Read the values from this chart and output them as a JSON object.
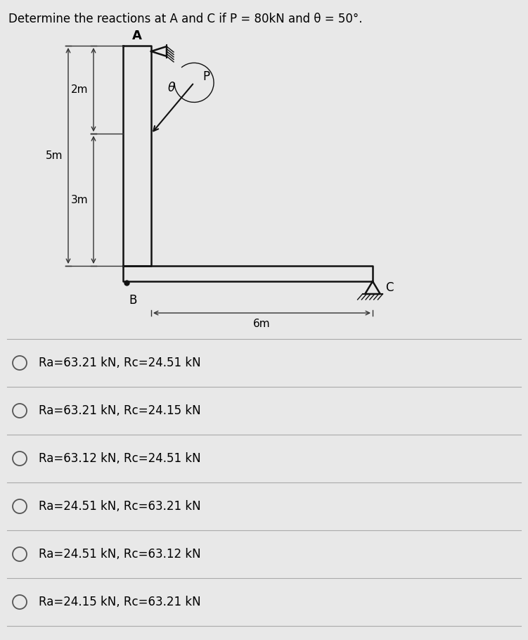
{
  "title": "Determine the reactions at A and C if P = 80kN and θ = 50°.",
  "bg_color": "#e8e8e8",
  "struct_color": "#111111",
  "options": [
    "Ra=63.21 kN, Rc=24.51 kN",
    "Ra=63.21 kN, Rc=24.15 kN",
    "Ra=63.12 kN, Rc=24.51 kN",
    "Ra=24.51 kN, Rc=63.21 kN",
    "Ra=24.51 kN, Rc=63.12 kN",
    "Ra=24.15 kN, Rc=63.21 kN"
  ],
  "dim_2m_label": "2m",
  "dim_5m_label": "5m",
  "dim_3m_label": "3m",
  "dim_6m_label": "6m",
  "label_A": "A",
  "label_B": "B",
  "label_C": "C",
  "label_theta": "θ",
  "label_P": "P",
  "fig_w": 7.51,
  "fig_h": 9.1,
  "dpi": 100
}
